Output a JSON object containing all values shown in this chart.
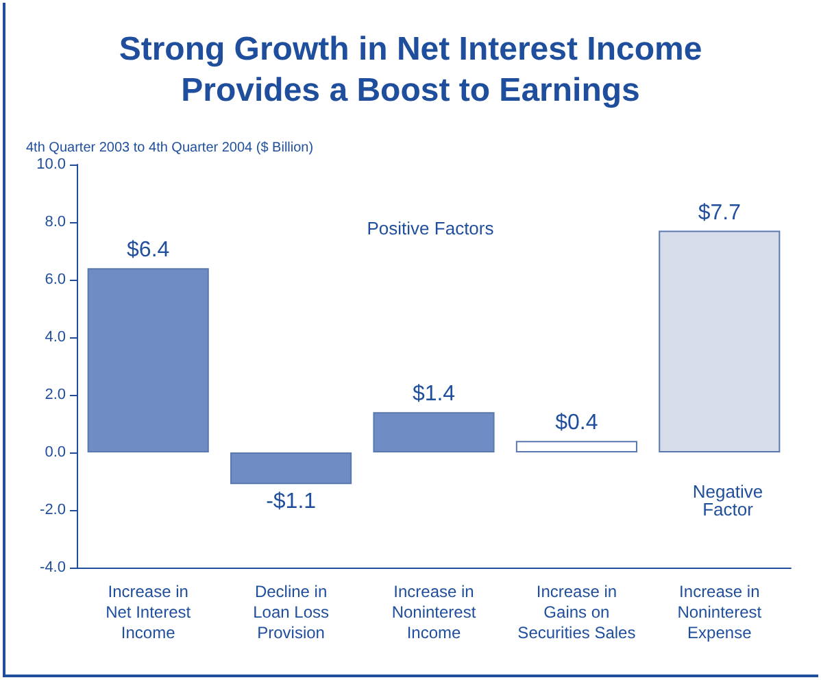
{
  "chart_data": {
    "type": "bar",
    "title": "Strong Growth in Net Interest Income\nProvides a Boost to Earnings",
    "subtitle": "4th Quarter 2003 to 4th Quarter 2004 ($ Billion)",
    "categories": [
      "Increase in\nNet Interest\nIncome",
      "Decline in\nLoan Loss\nProvision",
      "Increase in\nNoninterest\nIncome",
      "Increase in\nGains on\nSecurities Sales",
      "Increase in\nNoninterest\nExpense"
    ],
    "values": [
      6.4,
      -1.1,
      1.4,
      0.4,
      7.7
    ],
    "value_labels": [
      "$6.4",
      "-$1.1",
      "$1.4",
      "$0.4",
      "$7.7"
    ],
    "colors": [
      "#6f8cc4",
      "#6f8cc4",
      "#6f8cc4",
      "#ffffff",
      "#d6dde9"
    ],
    "ylim": [
      -4,
      10
    ],
    "yticks": [
      {
        "value": -4,
        "label": "-4.0"
      },
      {
        "value": -2,
        "label": "-2.0"
      },
      {
        "value": 0,
        "label": "0.0"
      },
      {
        "value": 2,
        "label": "2.0"
      },
      {
        "value": 4,
        "label": "4.0"
      },
      {
        "value": 6,
        "label": "6.0"
      },
      {
        "value": 8,
        "label": "8.0"
      },
      {
        "value": 10,
        "label": "10.0"
      }
    ],
    "annotations": [
      "Positive Factors",
      "Negative\nFactor"
    ]
  }
}
